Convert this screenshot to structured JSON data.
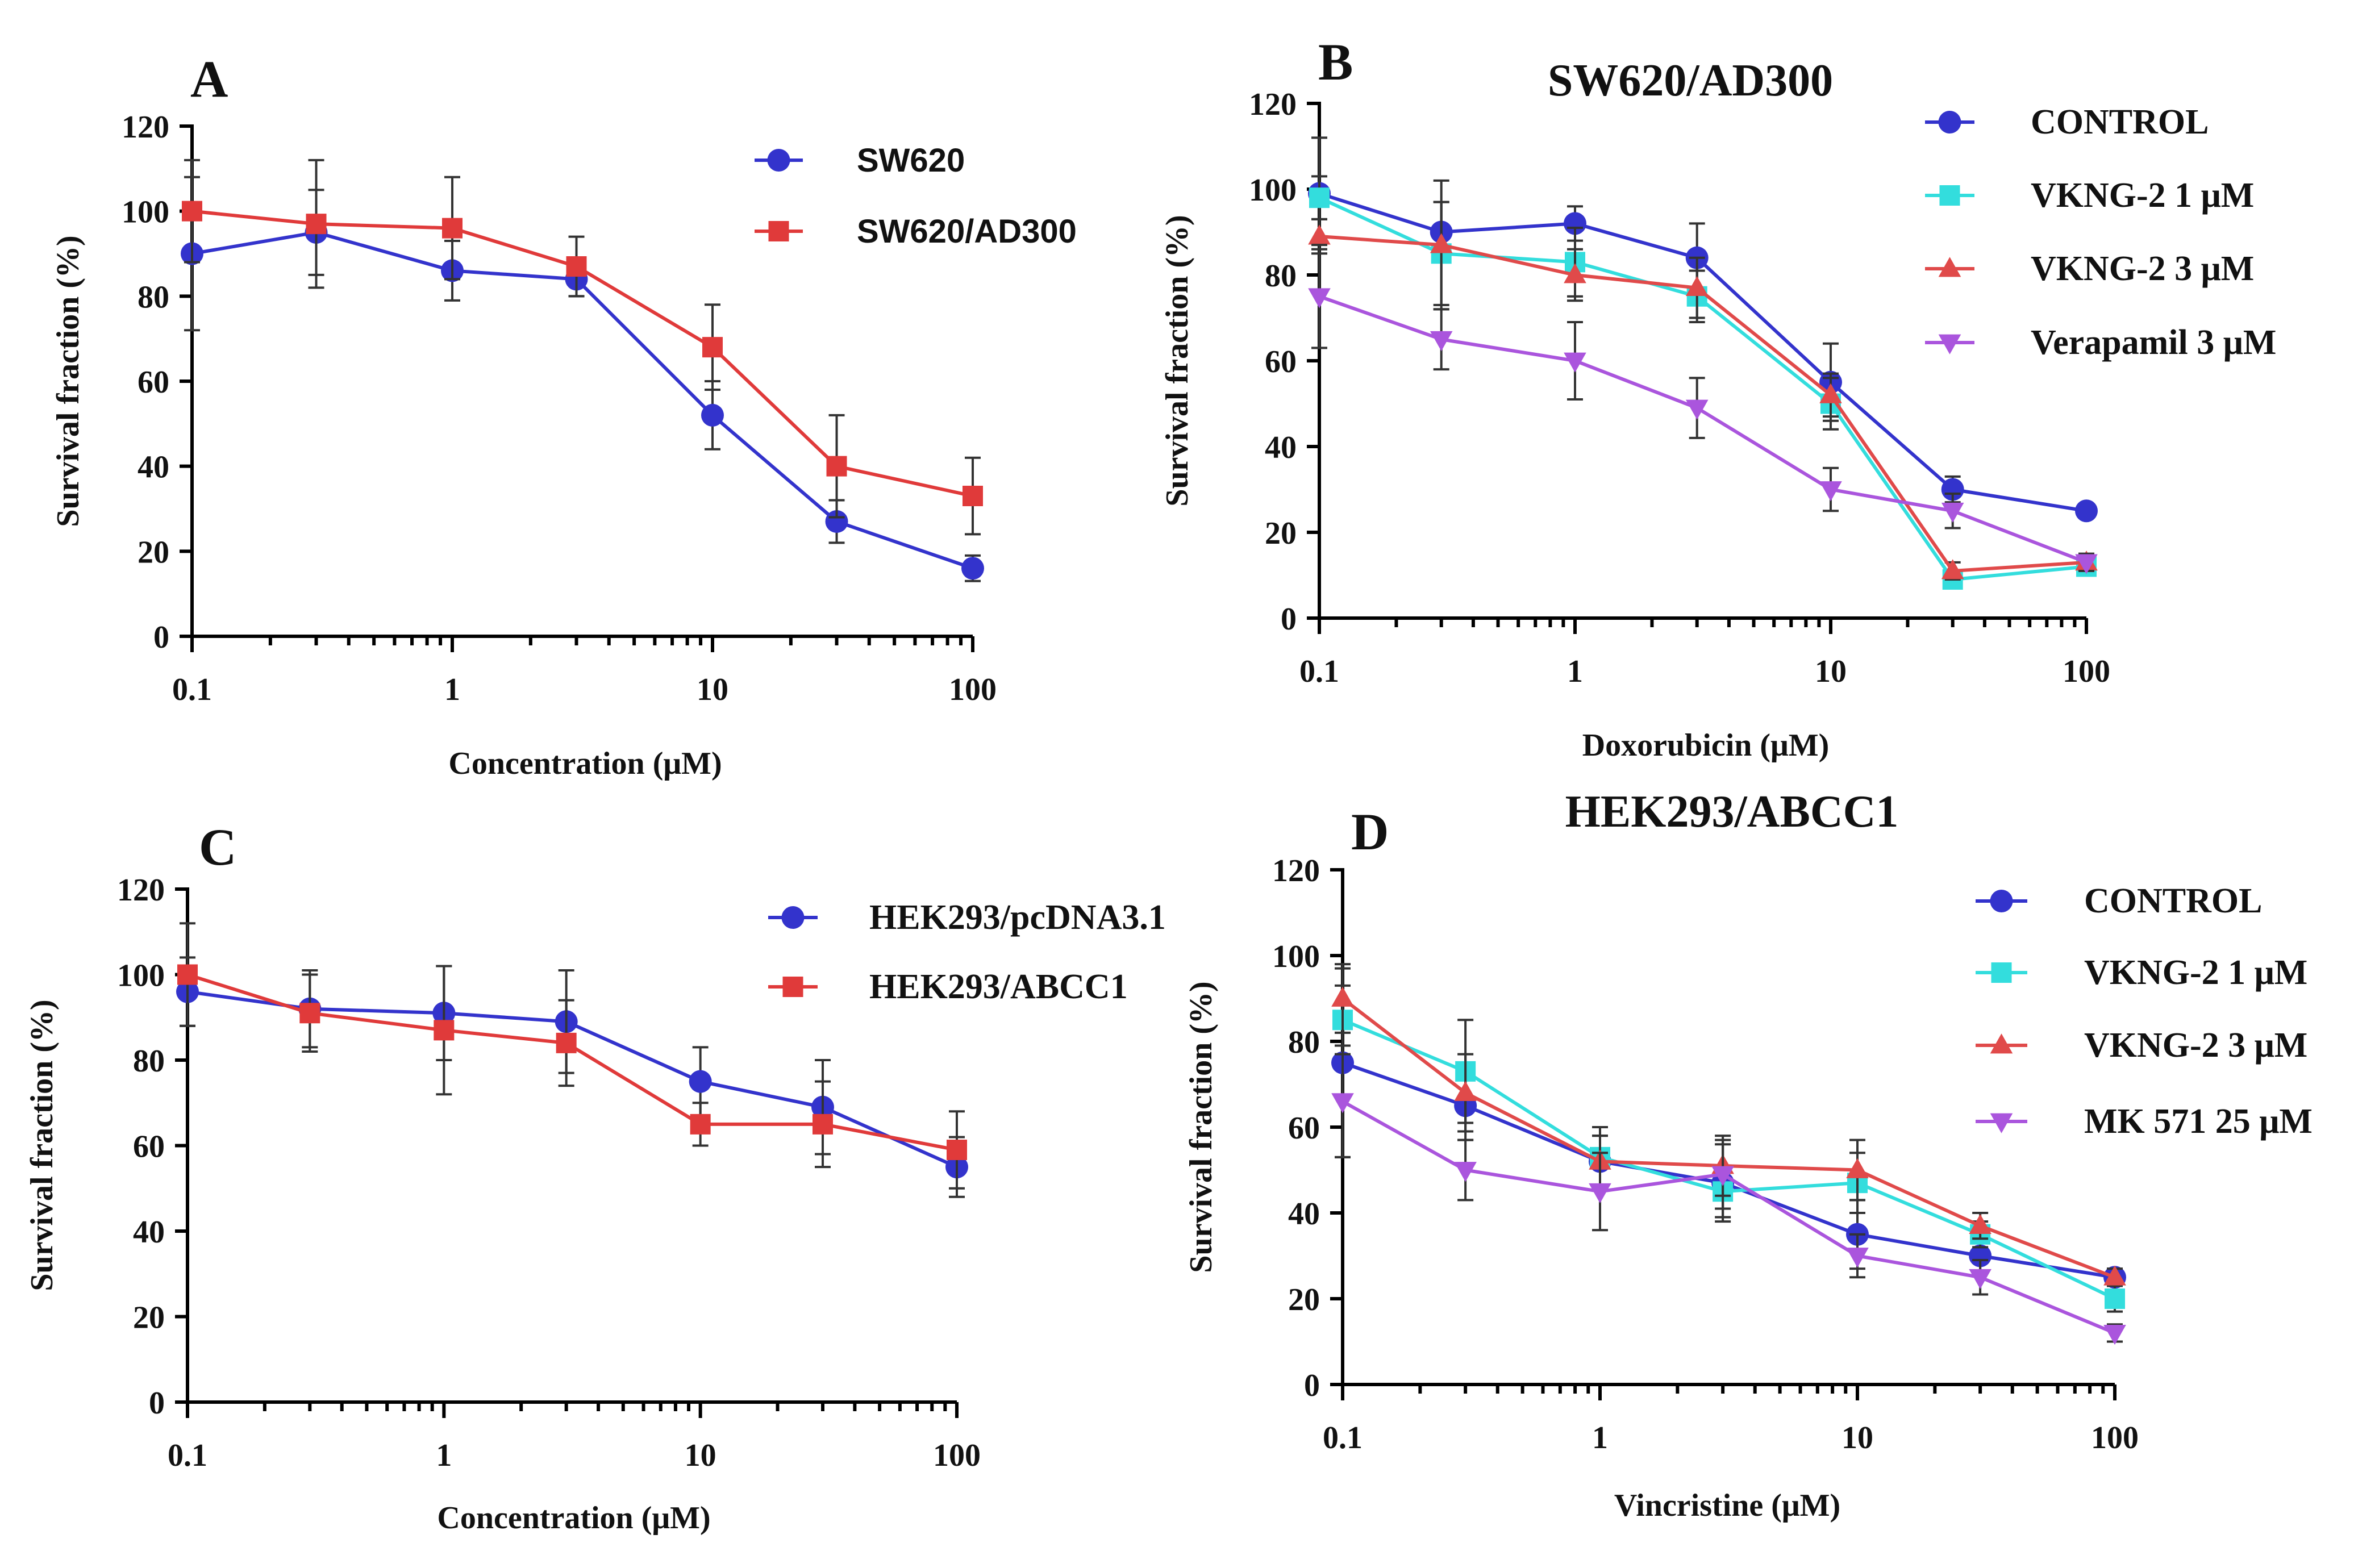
{
  "chart_data": [
    {
      "id": "A",
      "type": "line",
      "letter": "A",
      "title": "",
      "xlabel": "Concentration (μM)",
      "ylabel": "Survival fraction (%)",
      "xscale": "log",
      "xlim": [
        0.1,
        100
      ],
      "ylim": [
        0,
        120
      ],
      "xticks": [
        0.1,
        1,
        10,
        100
      ],
      "xtick_labels": [
        "0.1",
        "1",
        "10",
        "100"
      ],
      "yticks": [
        0,
        20,
        40,
        60,
        80,
        100,
        120
      ],
      "ytick_labels": [
        "0",
        "20",
        "40",
        "60",
        "80",
        "100",
        "120"
      ],
      "legend_position": "top-right",
      "legend_font": "sans",
      "x": [
        0.1,
        0.3,
        1,
        3,
        10,
        30,
        100
      ],
      "series": [
        {
          "name": "SW620",
          "color": "#3333cc",
          "marker": "circle",
          "values": [
            90,
            95,
            86,
            84,
            52,
            27,
            16
          ],
          "errors": [
            18,
            10,
            7,
            4,
            8,
            5,
            3
          ]
        },
        {
          "name": "SW620/AD300",
          "color": "#e03a3a",
          "marker": "square",
          "values": [
            100,
            97,
            96,
            87,
            68,
            40,
            33
          ],
          "errors": [
            12,
            15,
            12,
            7,
            10,
            12,
            9
          ]
        }
      ]
    },
    {
      "id": "B",
      "type": "line",
      "letter": "B",
      "title": "SW620/AD300",
      "xlabel": "Doxorubicin (μM)",
      "ylabel": "Survival fraction (%)",
      "xscale": "log",
      "xlim": [
        0.1,
        100
      ],
      "ylim": [
        0,
        120
      ],
      "xticks": [
        0.1,
        1,
        10,
        100
      ],
      "xtick_labels": [
        "0.1",
        "1",
        "10",
        "100"
      ],
      "yticks": [
        0,
        20,
        40,
        60,
        80,
        100,
        120
      ],
      "ytick_labels": [
        "0",
        "20",
        "40",
        "60",
        "80",
        "100",
        "120"
      ],
      "legend_position": "top-right",
      "legend_font": "serif",
      "x": [
        0.1,
        0.3,
        1,
        3,
        10,
        30,
        100
      ],
      "series": [
        {
          "name": "CONTROL",
          "color": "#3333cc",
          "marker": "circle",
          "values": [
            99,
            90,
            92,
            84,
            55,
            30,
            25
          ],
          "errors": [
            13,
            7,
            4,
            8,
            9,
            3,
            1
          ]
        },
        {
          "name": "VKNG-2 1 μM",
          "color": "#33dddd",
          "marker": "square",
          "values": [
            98,
            85,
            83,
            75,
            50,
            9,
            12
          ],
          "errors": [
            5,
            12,
            8,
            6,
            6,
            2,
            2
          ]
        },
        {
          "name": "VKNG-2 3 μM",
          "color": "#e04a4a",
          "marker": "triangle-up",
          "values": [
            89,
            87,
            80,
            77,
            52,
            11,
            13
          ],
          "errors": [
            4,
            15,
            6,
            7,
            5,
            2,
            2
          ]
        },
        {
          "name": "Verapamil 3 μM",
          "color": "#aa55dd",
          "marker": "triangle-down",
          "values": [
            75,
            65,
            60,
            49,
            30,
            25,
            13
          ],
          "errors": [
            12,
            7,
            9,
            7,
            5,
            4,
            2
          ]
        }
      ]
    },
    {
      "id": "C",
      "type": "line",
      "letter": "C",
      "title": "",
      "xlabel": "Concentration (μM)",
      "ylabel": "Survival fraction (%)",
      "xscale": "log",
      "xlim": [
        0.1,
        100
      ],
      "ylim": [
        0,
        120
      ],
      "xticks": [
        0.1,
        1,
        10,
        100
      ],
      "xtick_labels": [
        "0.1",
        "1",
        "10",
        "100"
      ],
      "yticks": [
        0,
        20,
        40,
        60,
        80,
        100,
        120
      ],
      "ytick_labels": [
        "0",
        "20",
        "40",
        "60",
        "80",
        "100",
        "120"
      ],
      "legend_position": "top-right",
      "legend_font": "serif",
      "x": [
        0.1,
        0.3,
        1,
        3,
        10,
        30,
        100
      ],
      "series": [
        {
          "name": "HEK293/pcDNA3.1",
          "color": "#3333cc",
          "marker": "circle",
          "values": [
            96,
            92,
            91,
            89,
            75,
            69,
            55
          ],
          "errors": [
            8,
            9,
            11,
            12,
            8,
            11,
            7
          ]
        },
        {
          "name": "HEK293/ABCC1",
          "color": "#e03a3a",
          "marker": "square",
          "values": [
            100,
            91,
            87,
            84,
            65,
            65,
            59
          ],
          "errors": [
            12,
            9,
            15,
            10,
            5,
            10,
            9
          ]
        }
      ]
    },
    {
      "id": "D",
      "type": "line",
      "letter": "D",
      "title": "HEK293/ABCC1",
      "xlabel": "Vincristine (μM)",
      "ylabel": "Survival fraction (%)",
      "xscale": "log",
      "xlim": [
        0.1,
        100
      ],
      "ylim": [
        0,
        120
      ],
      "xticks": [
        0.1,
        1,
        10,
        100
      ],
      "xtick_labels": [
        "0.1",
        "1",
        "10",
        "100"
      ],
      "yticks": [
        0,
        20,
        40,
        60,
        80,
        100,
        120
      ],
      "ytick_labels": [
        "0",
        "20",
        "40",
        "60",
        "80",
        "100",
        "120"
      ],
      "legend_position": "top-right",
      "legend_font": "serif",
      "x": [
        0.1,
        0.3,
        1,
        3,
        10,
        30,
        100
      ],
      "series": [
        {
          "name": "CONTROL",
          "color": "#3333cc",
          "marker": "circle",
          "values": [
            75,
            65,
            52,
            47,
            35,
            30,
            25
          ],
          "errors": [
            22,
            8,
            6,
            9,
            8,
            4,
            2
          ]
        },
        {
          "name": "VKNG-2 1 μM",
          "color": "#33dddd",
          "marker": "square",
          "values": [
            85,
            73,
            53,
            45,
            47,
            35,
            20
          ],
          "errors": [
            8,
            12,
            7,
            6,
            7,
            3,
            3
          ]
        },
        {
          "name": "VKNG-2 3 μM",
          "color": "#e04a4a",
          "marker": "triangle-up",
          "values": [
            90,
            68,
            52,
            51,
            50,
            37,
            25
          ],
          "errors": [
            8,
            9,
            6,
            7,
            7,
            3,
            2
          ]
        },
        {
          "name": "MK 571 25 μM",
          "color": "#aa55dd",
          "marker": "triangle-down",
          "values": [
            66,
            50,
            45,
            49,
            30,
            25,
            12
          ],
          "errors": [
            13,
            7,
            9,
            8,
            5,
            4,
            2
          ]
        }
      ]
    }
  ]
}
